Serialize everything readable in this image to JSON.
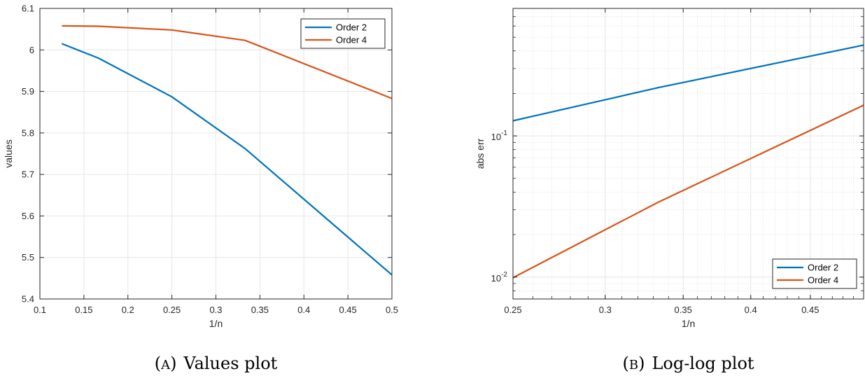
{
  "colors": {
    "order2": "#0072BD",
    "order4": "#D95319",
    "grid": "#e6e6e6",
    "minor_grid": "#dcdcdc",
    "axis": "#262626"
  },
  "chart_data": [
    {
      "type": "line",
      "caption_label": "A",
      "caption_text": "Values plot",
      "xlabel": "1/n",
      "ylabel": "values",
      "xlim": [
        0.1,
        0.5
      ],
      "ylim": [
        5.4,
        6.1
      ],
      "xticks": [
        0.1,
        0.15,
        0.2,
        0.25,
        0.3,
        0.35,
        0.4,
        0.45,
        0.5
      ],
      "xtick_labels": [
        "0.1",
        "0.15",
        "0.2",
        "0.25",
        "0.3",
        "0.35",
        "0.4",
        "0.45",
        "0.5"
      ],
      "yticks": [
        5.4,
        5.5,
        5.6,
        5.7,
        5.8,
        5.9,
        6.0,
        6.1
      ],
      "ytick_labels": [
        "5.4",
        "5.5",
        "5.6",
        "5.7",
        "5.8",
        "5.9",
        "6",
        "6.1"
      ],
      "grid": true,
      "legend_position": "top-right",
      "series": [
        {
          "name": "Order 2",
          "color": "#0072BD",
          "x": [
            0.125,
            0.1667,
            0.25,
            0.3333,
            0.5
          ],
          "y": [
            6.015,
            5.98,
            5.887,
            5.762,
            5.458
          ]
        },
        {
          "name": "Order 4",
          "color": "#D95319",
          "x": [
            0.125,
            0.1667,
            0.25,
            0.3333,
            0.5
          ],
          "y": [
            6.058,
            6.057,
            6.048,
            6.023,
            5.883
          ]
        }
      ]
    },
    {
      "type": "line",
      "caption_label": "B",
      "caption_text": "Log-log plot",
      "xlabel": "1/n",
      "ylabel": "abs err",
      "x_scale": "log",
      "y_scale": "log",
      "xlim": [
        0.25,
        0.5
      ],
      "ylim": [
        0.007,
        0.8
      ],
      "xticks": [
        0.25,
        0.3,
        0.35,
        0.4,
        0.45
      ],
      "xtick_labels": [
        "0.25",
        "0.3",
        "0.35",
        "0.4",
        "0.45"
      ],
      "yticks": [
        0.01,
        0.1
      ],
      "ytick_labels": [
        {
          "base": "10",
          "exp": "-2"
        },
        {
          "base": "10",
          "exp": "-1"
        }
      ],
      "grid": true,
      "legend_position": "bottom-right",
      "series": [
        {
          "name": "Order 2",
          "color": "#0072BD",
          "x": [
            0.25,
            0.3333,
            0.5
          ],
          "y": [
            0.128,
            0.22,
            0.44
          ]
        },
        {
          "name": "Order 4",
          "color": "#D95319",
          "x": [
            0.25,
            0.3333,
            0.5
          ],
          "y": [
            0.0099,
            0.034,
            0.165
          ]
        }
      ]
    }
  ]
}
